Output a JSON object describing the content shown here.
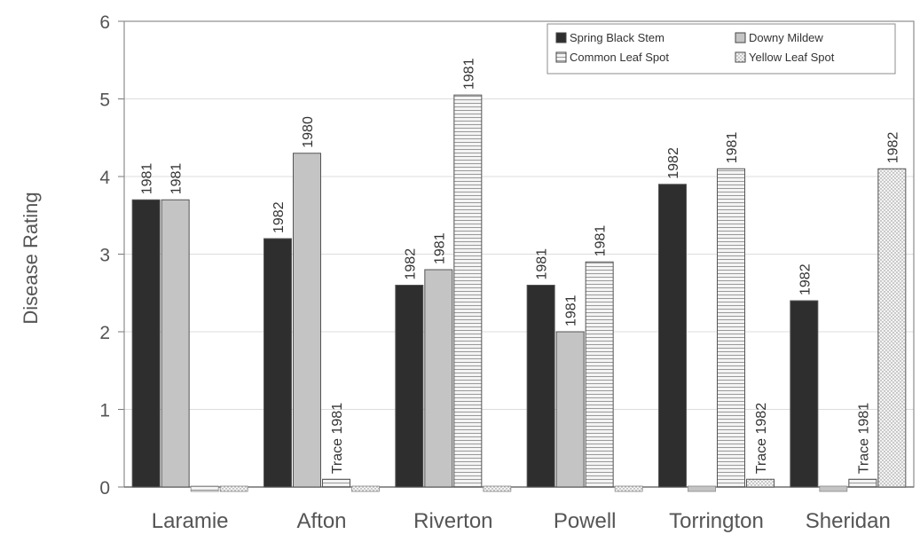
{
  "chart_data": {
    "type": "bar",
    "title": "",
    "xlabel": "",
    "ylabel": "Disease Rating",
    "ylim": [
      0,
      6
    ],
    "yticks": [
      0,
      1,
      2,
      3,
      4,
      5,
      6
    ],
    "grid": true,
    "legend_position": "top-right",
    "categories": [
      "Laramie",
      "Afton",
      "Riverton",
      "Powell",
      "Torrington",
      "Sheridan"
    ],
    "series": [
      {
        "name": "Spring Black Stem",
        "color": "#2e2e2e",
        "pattern": "solid",
        "values": [
          3.7,
          3.2,
          2.6,
          2.6,
          3.9,
          2.4
        ],
        "labels": [
          "1981",
          "1982",
          "1982",
          "1981",
          "1982",
          "1982"
        ]
      },
      {
        "name": "Downy Mildew",
        "color": "#c4c4c4",
        "pattern": "solid",
        "values": [
          3.7,
          4.3,
          2.8,
          2.0,
          0,
          0
        ],
        "labels": [
          "1981",
          "1980",
          "1981",
          "1981",
          "",
          ""
        ]
      },
      {
        "name": "Common Leaf Spot",
        "color": "#f2f2f2",
        "pattern": "hlines",
        "values": [
          0,
          0.1,
          5.05,
          2.9,
          4.1,
          0.1
        ],
        "labels": [
          "",
          "Trace 1981",
          "1981",
          "1981",
          "1981",
          "Trace 1981"
        ]
      },
      {
        "name": "Yellow Leaf Spot",
        "color": "#f2f2f2",
        "pattern": "dots",
        "values": [
          0,
          0,
          0,
          0,
          0.1,
          4.1
        ],
        "labels": [
          "",
          "",
          "",
          "",
          "Trace 1982",
          "1982"
        ]
      }
    ]
  }
}
